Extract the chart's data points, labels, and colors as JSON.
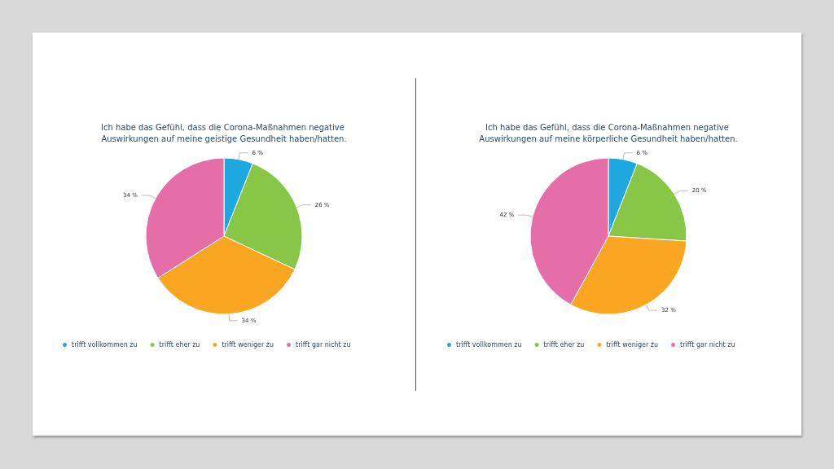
{
  "chart_data": [
    {
      "type": "pie",
      "title": "Ich habe das Gefühl, dass die Corona-Maßnahmen negative Auswirkungen auf meine geistige Gesundheit haben/hatten.",
      "categories": [
        "trifft vollkommen zu",
        "trifft eher zu",
        "trifft weniger zu",
        "trifft gar nicht zu"
      ],
      "values": [
        6,
        26,
        34,
        34
      ],
      "value_labels": [
        "6 %",
        "26 %",
        "34 %",
        "34 %"
      ],
      "colors": [
        "#1ea8e0",
        "#87c646",
        "#fba623",
        "#e56ea9"
      ],
      "legend": "bottom left"
    },
    {
      "type": "pie",
      "title": "Ich habe das Gefühl, dass die Corona-Maßnahmen negative Auswirkungen auf meine körperliche Gesundheit haben/hatten.",
      "categories": [
        "trifft vollkommen zu",
        "trifft eher zu",
        "trifft weniger zu",
        "trifft gar nicht zu"
      ],
      "values": [
        6,
        20,
        32,
        42
      ],
      "value_labels": [
        "6 %",
        "20 %",
        "32 %",
        "42 %"
      ],
      "colors": [
        "#1ea8e0",
        "#87c646",
        "#fba623",
        "#e56ea9"
      ],
      "legend": "bottom left"
    }
  ]
}
